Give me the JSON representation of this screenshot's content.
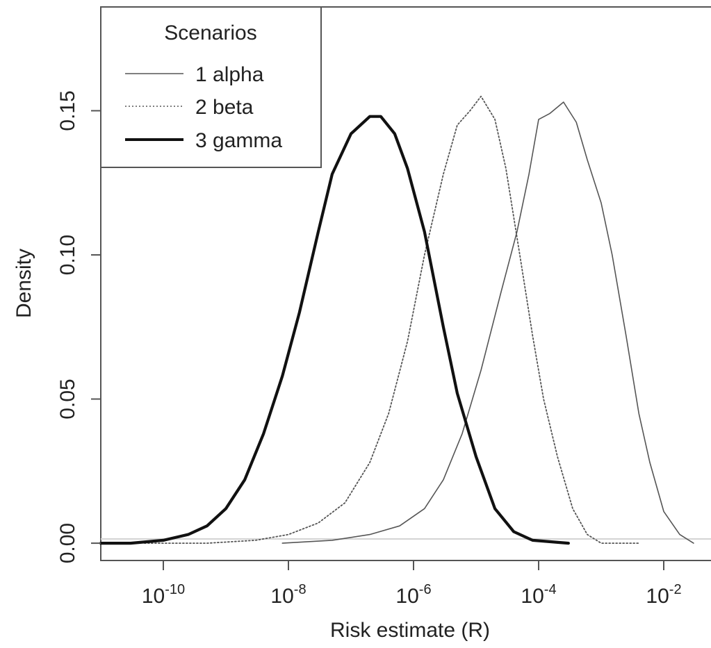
{
  "chart_data": {
    "type": "line",
    "xlabel": "Risk estimate (R)",
    "ylabel": "Density",
    "x_scale": "log10",
    "xlim": [
      1e-11,
      0.1
    ],
    "ylim": [
      -0.006,
      0.186
    ],
    "grid": false,
    "legend_title": "Scenarios",
    "legend_position": "top-left",
    "x_ticks": [
      {
        "value": 1e-10,
        "base": "10",
        "exp": "-10"
      },
      {
        "value": 1e-08,
        "base": "10",
        "exp": "-8"
      },
      {
        "value": 1e-06,
        "base": "10",
        "exp": "-6"
      },
      {
        "value": 0.0001,
        "base": "10",
        "exp": "-4"
      },
      {
        "value": 0.01,
        "base": "10",
        "exp": "-2"
      }
    ],
    "y_ticks": [
      {
        "value": 0.0,
        "label": "0.00"
      },
      {
        "value": 0.05,
        "label": "0.05"
      },
      {
        "value": 0.1,
        "label": "0.10"
      },
      {
        "value": 0.15,
        "label": "0.15"
      }
    ],
    "series": [
      {
        "name": "1 alpha",
        "style": "solid-thin",
        "color": "#555555",
        "points": [
          [
            8e-09,
            0.0
          ],
          [
            5e-08,
            0.001
          ],
          [
            2e-07,
            0.003
          ],
          [
            6e-07,
            0.006
          ],
          [
            1.5e-06,
            0.012
          ],
          [
            3e-06,
            0.022
          ],
          [
            6e-06,
            0.038
          ],
          [
            1.2e-05,
            0.06
          ],
          [
            2.5e-05,
            0.087
          ],
          [
            4.5e-05,
            0.108
          ],
          [
            7e-05,
            0.128
          ],
          [
            0.0001,
            0.147
          ],
          [
            0.00015,
            0.149
          ],
          [
            0.00025,
            0.153
          ],
          [
            0.0004,
            0.146
          ],
          [
            0.0006,
            0.133
          ],
          [
            0.001,
            0.118
          ],
          [
            0.0015,
            0.1
          ],
          [
            0.0025,
            0.072
          ],
          [
            0.004,
            0.045
          ],
          [
            0.006,
            0.028
          ],
          [
            0.01,
            0.011
          ],
          [
            0.018,
            0.003
          ],
          [
            0.03,
            0.0
          ]
        ]
      },
      {
        "name": "2 beta",
        "style": "dotted",
        "color": "#555555",
        "points": [
          [
            5e-11,
            0.0
          ],
          [
            5e-10,
            0.0
          ],
          [
            3e-09,
            0.001
          ],
          [
            1e-08,
            0.003
          ],
          [
            3e-08,
            0.007
          ],
          [
            8e-08,
            0.014
          ],
          [
            2e-07,
            0.028
          ],
          [
            4e-07,
            0.045
          ],
          [
            8e-07,
            0.07
          ],
          [
            1.5e-06,
            0.1
          ],
          [
            3e-06,
            0.128
          ],
          [
            5e-06,
            0.145
          ],
          [
            8e-06,
            0.15
          ],
          [
            1.2e-05,
            0.155
          ],
          [
            2e-05,
            0.147
          ],
          [
            3e-05,
            0.13
          ],
          [
            5e-05,
            0.1
          ],
          [
            8e-05,
            0.072
          ],
          [
            0.00012,
            0.05
          ],
          [
            0.0002,
            0.03
          ],
          [
            0.00035,
            0.012
          ],
          [
            0.0006,
            0.003
          ],
          [
            0.001,
            0.0
          ],
          [
            0.004,
            0.0
          ]
        ]
      },
      {
        "name": "3 gamma",
        "style": "solid-thick",
        "color": "#111111",
        "points": [
          [
            1e-11,
            0.0
          ],
          [
            3e-11,
            0.0
          ],
          [
            1e-10,
            0.001
          ],
          [
            2.5e-10,
            0.003
          ],
          [
            5e-10,
            0.006
          ],
          [
            1e-09,
            0.012
          ],
          [
            2e-09,
            0.022
          ],
          [
            4e-09,
            0.038
          ],
          [
            8e-09,
            0.058
          ],
          [
            1.5e-08,
            0.08
          ],
          [
            3e-08,
            0.108
          ],
          [
            5e-08,
            0.128
          ],
          [
            1e-07,
            0.142
          ],
          [
            2e-07,
            0.148
          ],
          [
            3e-07,
            0.148
          ],
          [
            5e-07,
            0.142
          ],
          [
            8e-07,
            0.13
          ],
          [
            1.5e-06,
            0.108
          ],
          [
            3e-06,
            0.075
          ],
          [
            5e-06,
            0.052
          ],
          [
            1e-05,
            0.03
          ],
          [
            2e-05,
            0.012
          ],
          [
            4e-05,
            0.004
          ],
          [
            8e-05,
            0.001
          ],
          [
            0.0003,
            0.0
          ]
        ]
      }
    ]
  }
}
